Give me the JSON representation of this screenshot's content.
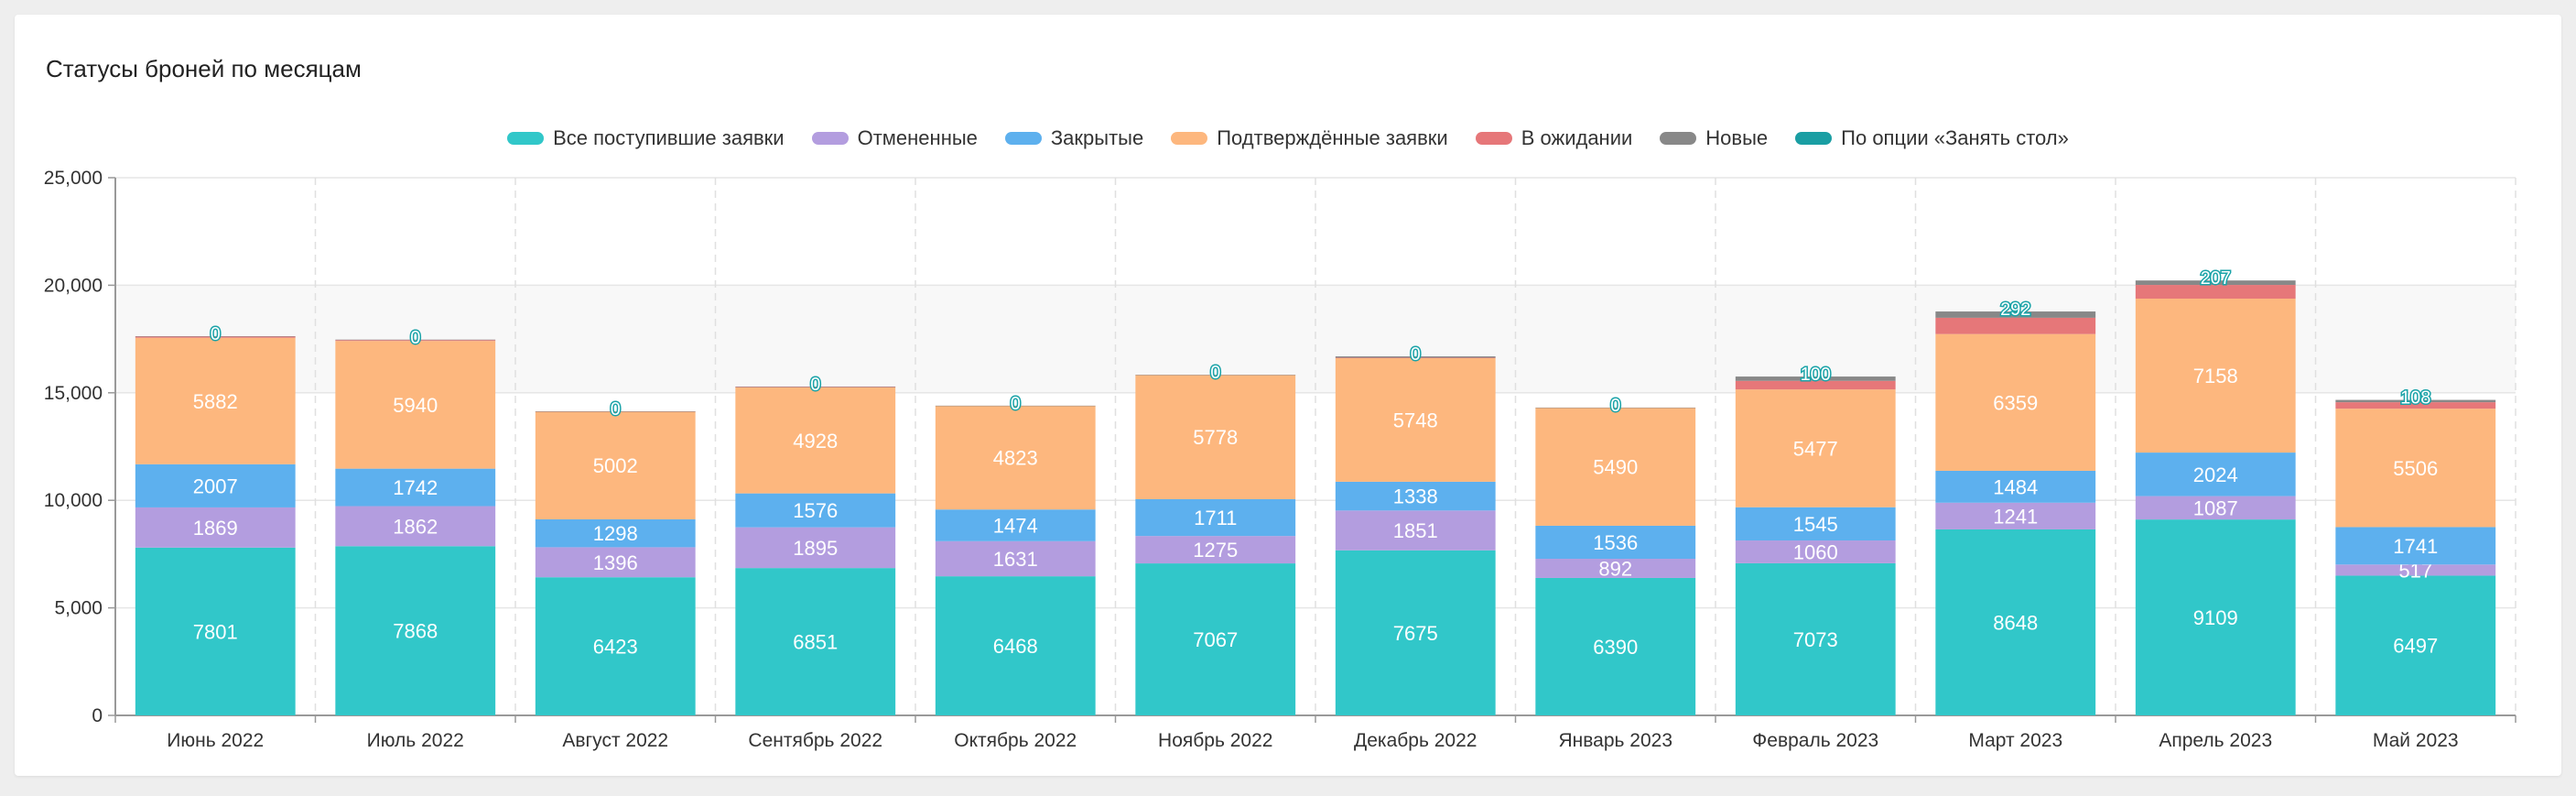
{
  "title": "Статусы броней по месяцам",
  "colors": {
    "all": "#31c7c9",
    "cancelled": "#b39ddf",
    "closed": "#5db0ee",
    "confirmed": "#fdb77e",
    "pending": "#e67779",
    "new": "#888888",
    "table_option": "#1a9ea3"
  },
  "chart_data": {
    "type": "bar",
    "stacked": true,
    "categories": [
      "Июнь 2022",
      "Июль 2022",
      "Август 2022",
      "Сентябрь 2022",
      "Октябрь 2022",
      "Ноябрь 2022",
      "Декабрь 2022",
      "Январь 2023",
      "Февраль 2023",
      "Март 2023",
      "Апрель 2023",
      "Май 2023"
    ],
    "ylim": [
      0,
      25000
    ],
    "yticks": [
      "0",
      "5,000",
      "10,000",
      "15,000",
      "20,000",
      "25,000"
    ],
    "grid": true,
    "legend_position": "top",
    "series": [
      {
        "name": "Все поступившие заявки",
        "key": "all",
        "values": [
          7801,
          7868,
          6423,
          6851,
          6468,
          7067,
          7675,
          6390,
          7073,
          8648,
          9109,
          6497
        ]
      },
      {
        "name": "Отмененные",
        "key": "cancelled",
        "values": [
          1869,
          1862,
          1396,
          1895,
          1631,
          1275,
          1851,
          892,
          1060,
          1241,
          1087,
          517
        ]
      },
      {
        "name": "Закрытые",
        "key": "closed",
        "values": [
          2007,
          1742,
          1298,
          1576,
          1474,
          1711,
          1338,
          1536,
          1545,
          1484,
          2024,
          1741
        ]
      },
      {
        "name": "Подтверждённые заявки",
        "key": "confirmed",
        "values": [
          5882,
          5940,
          5002,
          4928,
          4823,
          5778,
          5748,
          5490,
          5477,
          6359,
          7158,
          5506
        ]
      },
      {
        "name": "В ожидании",
        "key": "pending",
        "values": [
          60,
          40,
          15,
          30,
          0,
          0,
          20,
          0,
          400,
          756,
          637,
          300
        ]
      },
      {
        "name": "Новые",
        "key": "new",
        "values": [
          10,
          20,
          5,
          10,
          5,
          5,
          60,
          5,
          200,
          292,
          207,
          108
        ]
      },
      {
        "name": "По опции «Занять стол»",
        "key": "table_option",
        "values": [
          0,
          0,
          0,
          0,
          0,
          0,
          0,
          0,
          0,
          0,
          0,
          0
        ]
      }
    ],
    "top_labels": [
      "0",
      "0",
      "0",
      "0",
      "0",
      "0",
      "0",
      "0",
      "100",
      "292",
      "207",
      "108"
    ]
  }
}
